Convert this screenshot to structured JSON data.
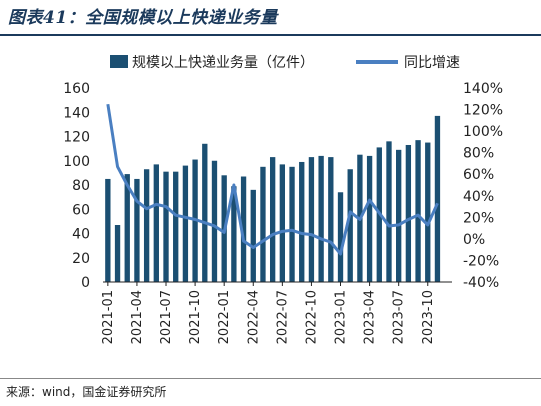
{
  "title": "图表41：全国规模以上快递业务量",
  "source": "来源：wind，国金证券研究所",
  "chart_data": {
    "type": "bar",
    "categories": [
      "2021-01",
      "2021-02",
      "2021-03",
      "2021-04",
      "2021-05",
      "2021-06",
      "2021-07",
      "2021-08",
      "2021-09",
      "2021-10",
      "2021-11",
      "2021-12",
      "2022-01",
      "2022-02",
      "2022-03",
      "2022-04",
      "2022-05",
      "2022-06",
      "2022-07",
      "2022-08",
      "2022-09",
      "2022-10",
      "2022-11",
      "2022-12",
      "2023-01",
      "2023-02",
      "2023-03",
      "2023-04",
      "2023-05",
      "2023-06",
      "2023-07",
      "2023-08",
      "2023-09",
      "2023-10",
      "2023-11",
      "2023-12"
    ],
    "tick_labels": [
      "2021-01",
      "2021-04",
      "2021-07",
      "2021-10",
      "2022-01",
      "2022-04",
      "2022-07",
      "2022-10",
      "2023-01",
      "2023-04",
      "2023-07",
      "2023-10"
    ],
    "series": [
      {
        "name": "规模以上快递业务量（亿件）",
        "type": "bar",
        "axis": "left",
        "color": "#1b4f72",
        "values": [
          85,
          47,
          89,
          85,
          93,
          97,
          91,
          91,
          96,
          101,
          114,
          100,
          88,
          79,
          87,
          76,
          95,
          103,
          97,
          95,
          99,
          103,
          104,
          103,
          74,
          93,
          105,
          104,
          111,
          116,
          109,
          113,
          117,
          115,
          137,
          null
        ]
      },
      {
        "name": "同比增速",
        "type": "line",
        "axis": "right",
        "color": "#4a7fc1",
        "values": [
          125,
          67,
          50,
          35,
          28,
          32,
          30,
          22,
          20,
          18,
          15,
          12,
          6,
          50,
          -2,
          -8,
          -2,
          4,
          7,
          8,
          5,
          4,
          0,
          -3,
          -14,
          25,
          18,
          36,
          24,
          12,
          13,
          18,
          22,
          13,
          33,
          null
        ]
      }
    ],
    "yleft_ticks": [
      "0",
      "20",
      "40",
      "60",
      "80",
      "100",
      "120",
      "140",
      "160"
    ],
    "yright_ticks": [
      "-40%",
      "-20%",
      "0%",
      "20%",
      "40%",
      "60%",
      "80%",
      "100%",
      "120%",
      "140%"
    ],
    "ylim_left": [
      0,
      160
    ],
    "ylim_right": [
      -40,
      140
    ],
    "legend_position": "top",
    "grid": false
  }
}
